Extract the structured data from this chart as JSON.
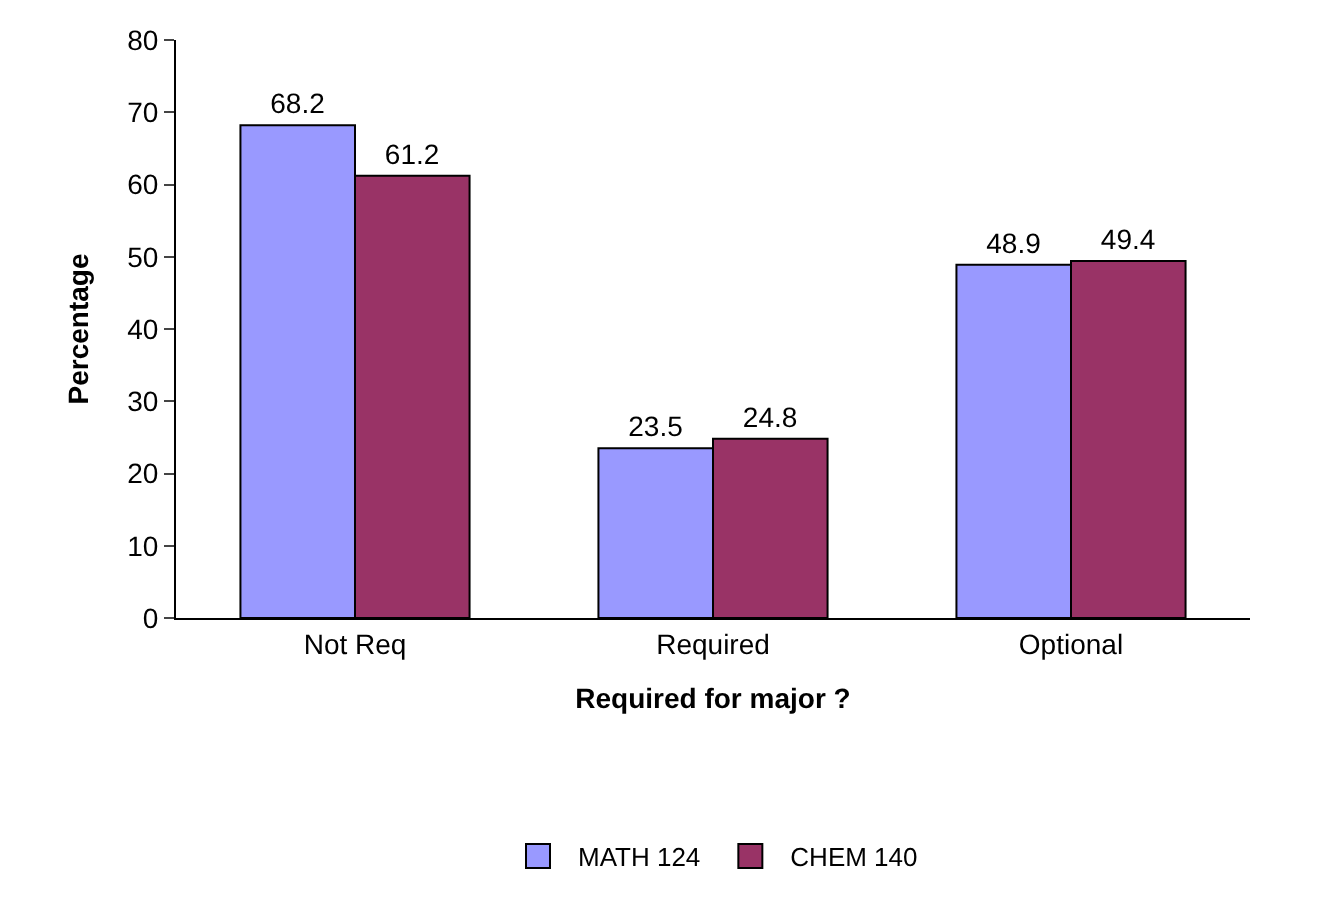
{
  "chart_data": {
    "type": "bar",
    "xlabel": "Required for major ?",
    "ylabel": "Percentage",
    "categories": [
      "Not Req",
      "Required",
      "Optional"
    ],
    "series": [
      {
        "name": "MATH 124",
        "color": "#9999ff",
        "values": [
          68.2,
          23.5,
          48.9
        ]
      },
      {
        "name": "CHEM 140",
        "color": "#993366",
        "values": [
          61.2,
          24.8,
          49.4
        ]
      }
    ],
    "ylim": [
      0,
      80
    ],
    "yticks": [
      0,
      10,
      20,
      30,
      40,
      50,
      60,
      70,
      80
    ],
    "grid": false,
    "legend": "bottom",
    "data_labels": true
  }
}
